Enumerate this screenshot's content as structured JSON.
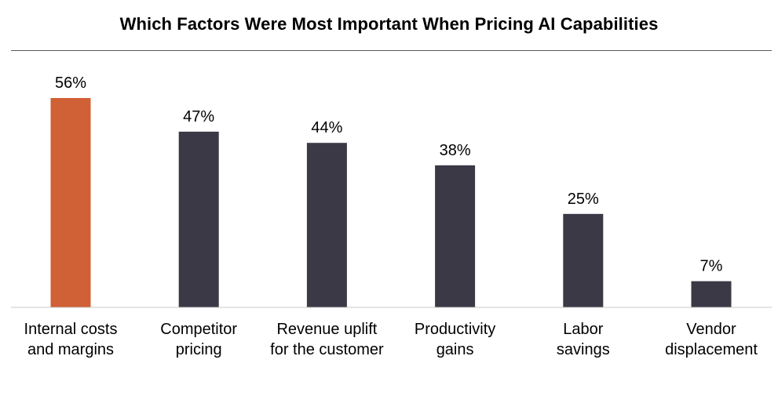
{
  "chart_data": {
    "type": "bar",
    "title": "Which Factors Were Most Important When Pricing AI Capabilities",
    "categories": [
      [
        "Internal costs",
        "and margins"
      ],
      [
        "Competitor",
        "pricing"
      ],
      [
        "Revenue uplift",
        "for the customer"
      ],
      [
        "Productivity",
        "gains"
      ],
      [
        "Labor",
        "savings"
      ],
      [
        "Vendor",
        "displacement"
      ]
    ],
    "values": [
      56,
      47,
      44,
      38,
      25,
      7
    ],
    "value_labels": [
      "56%",
      "47%",
      "44%",
      "38%",
      "25%",
      "7%"
    ],
    "unit": "%",
    "ylim": [
      0,
      56
    ],
    "highlight_index": 0,
    "colors": {
      "highlight": "#D06035",
      "default": "#3B3945",
      "baseline": "#C8C8C8",
      "title_rule": "#5A5A5A"
    },
    "grid": false,
    "legend": "none"
  }
}
